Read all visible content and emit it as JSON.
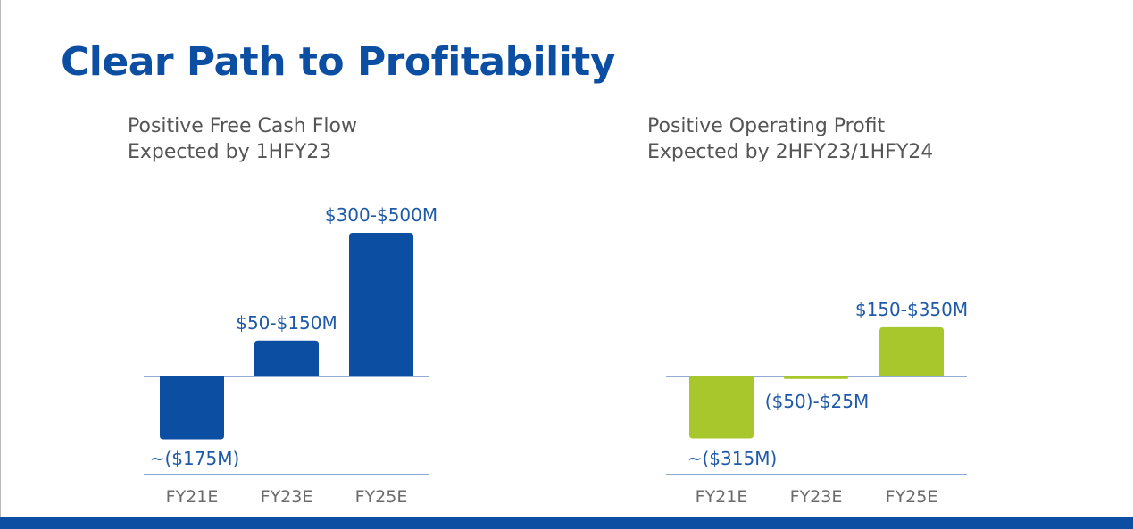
{
  "page": {
    "title": "Clear Path to Profitability"
  },
  "colors": {
    "brand_blue": "#0b4ea2",
    "bar_blue": "#0b4ea2",
    "bar_green": "#a8c72c",
    "label_blue": "#1f5aa8",
    "axis_line": "#6b8fc7",
    "tick_gray": "#6b6b6b",
    "subtitle_gray": "#555555"
  },
  "chart_data": [
    {
      "type": "bar",
      "title": "Positive Free Cash Flow",
      "subtitle": "Expected by 1HFY23",
      "categories": [
        "FY21E",
        "FY23E",
        "FY25E"
      ],
      "values": [
        -175,
        100,
        400
      ],
      "value_labels": [
        "~($175M)",
        "$50-$150M",
        "$300-$500M"
      ],
      "ranges": [
        [
          -175,
          -175
        ],
        [
          50,
          150
        ],
        [
          300,
          500
        ]
      ],
      "units": "$M",
      "bar_colors": [
        "#0b4ea2",
        "#0b4ea2",
        "#0b4ea2"
      ],
      "xlabel": "",
      "ylabel": "",
      "grid": false,
      "legend": "none"
    },
    {
      "type": "bar",
      "title": "Positive Operating Profit",
      "subtitle": "Expected by 2HFY23/1HFY24",
      "categories": [
        "FY21E",
        "FY23E",
        "FY25E"
      ],
      "values": [
        -315,
        -12.5,
        250
      ],
      "value_labels": [
        "~($315M)",
        "($50)-$25M",
        "$150-$350M"
      ],
      "ranges": [
        [
          -315,
          -315
        ],
        [
          -50,
          25
        ],
        [
          150,
          350
        ]
      ],
      "units": "$M",
      "bar_colors": [
        "#a8c72c",
        "#a8c72c",
        "#a8c72c"
      ],
      "xlabel": "",
      "ylabel": "",
      "grid": false,
      "legend": "none"
    }
  ]
}
